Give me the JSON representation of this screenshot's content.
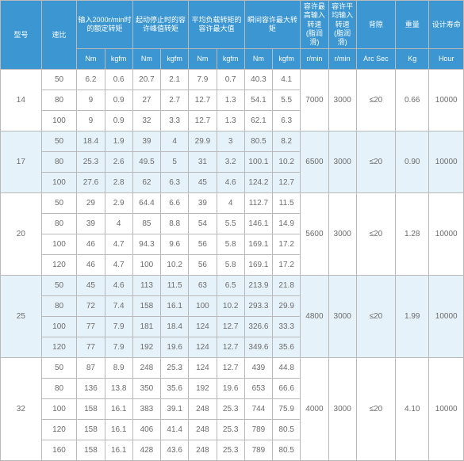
{
  "header": {
    "model": "型号",
    "ratio": "速比",
    "rated": "输入2000r/min时的额定转矩",
    "startstop": "起动停止时的容许峰值转矩",
    "avgload": "平均负载转矩的容许最大值",
    "moment": "瞬间容许最大转矩",
    "maxin": "容许最高输入转速 (脂润滑)",
    "avgin": "容许平均输入转速 (脂润滑)",
    "backlash": "背隙",
    "weight": "重量",
    "life": "设计寿命"
  },
  "units": {
    "nm": "Nm",
    "kgfm": "kgfm",
    "rmin": "r/min",
    "arcsec": "Arc Sec",
    "kg": "Kg",
    "hour": "Hour"
  },
  "groups": [
    {
      "model": "14",
      "highlight": false,
      "maxin": "7000",
      "avgin": "3000",
      "backlash": "≤20",
      "weight": "0.66",
      "life": "10000",
      "rows": [
        {
          "ratio": "50",
          "c1": "6.2",
          "c2": "0.6",
          "c3": "20.7",
          "c4": "2.1",
          "c5": "7.9",
          "c6": "0.7",
          "c7": "40.3",
          "c8": "4.1"
        },
        {
          "ratio": "80",
          "c1": "9",
          "c2": "0.9",
          "c3": "27",
          "c4": "2.7",
          "c5": "12.7",
          "c6": "1.3",
          "c7": "54.1",
          "c8": "5.5"
        },
        {
          "ratio": "100",
          "c1": "9",
          "c2": "0.9",
          "c3": "32",
          "c4": "3.3",
          "c5": "12.7",
          "c6": "1.3",
          "c7": "62.1",
          "c8": "6.3"
        }
      ]
    },
    {
      "model": "17",
      "highlight": true,
      "maxin": "6500",
      "avgin": "3000",
      "backlash": "≤20",
      "weight": "0.90",
      "life": "10000",
      "rows": [
        {
          "ratio": "50",
          "c1": "18.4",
          "c2": "1.9",
          "c3": "39",
          "c4": "4",
          "c5": "29.9",
          "c6": "3",
          "c7": "80.5",
          "c8": "8.2"
        },
        {
          "ratio": "80",
          "c1": "25.3",
          "c2": "2.6",
          "c3": "49.5",
          "c4": "5",
          "c5": "31",
          "c6": "3.2",
          "c7": "100.1",
          "c8": "10.2"
        },
        {
          "ratio": "100",
          "c1": "27.6",
          "c2": "2.8",
          "c3": "62",
          "c4": "6.3",
          "c5": "45",
          "c6": "4.6",
          "c7": "124.2",
          "c8": "12.7"
        }
      ]
    },
    {
      "model": "20",
      "highlight": false,
      "maxin": "5600",
      "avgin": "3000",
      "backlash": "≤20",
      "weight": "1.28",
      "life": "10000",
      "rows": [
        {
          "ratio": "50",
          "c1": "29",
          "c2": "2.9",
          "c3": "64.4",
          "c4": "6.6",
          "c5": "39",
          "c6": "4",
          "c7": "112.7",
          "c8": "11.5"
        },
        {
          "ratio": "80",
          "c1": "39",
          "c2": "4",
          "c3": "85",
          "c4": "8.8",
          "c5": "54",
          "c6": "5.5",
          "c7": "146.1",
          "c8": "14.9"
        },
        {
          "ratio": "100",
          "c1": "46",
          "c2": "4.7",
          "c3": "94.3",
          "c4": "9.6",
          "c5": "56",
          "c6": "5.8",
          "c7": "169.1",
          "c8": "17.2"
        },
        {
          "ratio": "120",
          "c1": "46",
          "c2": "4.7",
          "c3": "100",
          "c4": "10.2",
          "c5": "56",
          "c6": "5.8",
          "c7": "169.1",
          "c8": "17.2"
        }
      ]
    },
    {
      "model": "25",
      "highlight": true,
      "maxin": "4800",
      "avgin": "3000",
      "backlash": "≤20",
      "weight": "1.99",
      "life": "10000",
      "rows": [
        {
          "ratio": "50",
          "c1": "45",
          "c2": "4.6",
          "c3": "113",
          "c4": "11.5",
          "c5": "63",
          "c6": "6.5",
          "c7": "213.9",
          "c8": "21.8"
        },
        {
          "ratio": "80",
          "c1": "72",
          "c2": "7.4",
          "c3": "158",
          "c4": "16.1",
          "c5": "100",
          "c6": "10.2",
          "c7": "293.3",
          "c8": "29.9"
        },
        {
          "ratio": "100",
          "c1": "77",
          "c2": "7.9",
          "c3": "181",
          "c4": "18.4",
          "c5": "124",
          "c6": "12.7",
          "c7": "326.6",
          "c8": "33.3"
        },
        {
          "ratio": "120",
          "c1": "77",
          "c2": "7.9",
          "c3": "192",
          "c4": "19.6",
          "c5": "124",
          "c6": "12.7",
          "c7": "349.6",
          "c8": "35.6"
        }
      ]
    },
    {
      "model": "32",
      "highlight": false,
      "maxin": "4000",
      "avgin": "3000",
      "backlash": "≤20",
      "weight": "4.10",
      "life": "10000",
      "rows": [
        {
          "ratio": "50",
          "c1": "87",
          "c2": "8.9",
          "c3": "248",
          "c4": "25.3",
          "c5": "124",
          "c6": "12.7",
          "c7": "439",
          "c8": "44.8"
        },
        {
          "ratio": "80",
          "c1": "136",
          "c2": "13.8",
          "c3": "350",
          "c4": "35.6",
          "c5": "192",
          "c6": "19.6",
          "c7": "653",
          "c8": "66.6"
        },
        {
          "ratio": "100",
          "c1": "158",
          "c2": "16.1",
          "c3": "383",
          "c4": "39.1",
          "c5": "248",
          "c6": "25.3",
          "c7": "744",
          "c8": "75.9"
        },
        {
          "ratio": "120",
          "c1": "158",
          "c2": "16.1",
          "c3": "406",
          "c4": "41.4",
          "c5": "248",
          "c6": "25.3",
          "c7": "789",
          "c8": "80.5"
        },
        {
          "ratio": "160",
          "c1": "158",
          "c2": "16.1",
          "c3": "428",
          "c4": "43.6",
          "c5": "248",
          "c6": "25.3",
          "c7": "789",
          "c8": "80.5"
        }
      ]
    }
  ]
}
